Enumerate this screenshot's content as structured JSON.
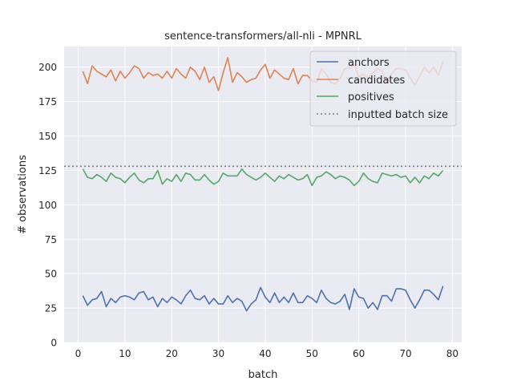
{
  "chart_data": {
    "type": "line",
    "title": "sentence-transformers/all-nli - MPNRL",
    "xlabel": "batch",
    "ylabel": "# observations",
    "xlim": [
      -3,
      82
    ],
    "ylim": [
      0,
      215
    ],
    "xticks": [
      0,
      10,
      20,
      30,
      40,
      50,
      60,
      70,
      80
    ],
    "yticks": [
      0,
      25,
      50,
      75,
      100,
      125,
      150,
      175,
      200
    ],
    "grid": true,
    "legend_position": "top-right",
    "x": [
      1,
      2,
      3,
      4,
      5,
      6,
      7,
      8,
      9,
      10,
      11,
      12,
      13,
      14,
      15,
      16,
      17,
      18,
      19,
      20,
      21,
      22,
      23,
      24,
      25,
      26,
      27,
      28,
      29,
      30,
      31,
      32,
      33,
      34,
      35,
      36,
      37,
      38,
      39,
      40,
      41,
      42,
      43,
      44,
      45,
      46,
      47,
      48,
      49,
      50,
      51,
      52,
      53,
      54,
      55,
      56,
      57,
      58,
      59,
      60,
      61,
      62,
      63,
      64,
      65,
      66,
      67,
      68,
      69,
      70,
      71,
      72,
      73,
      74,
      75,
      76,
      77,
      78
    ],
    "series": [
      {
        "name": "anchors",
        "color": "#4c72b0",
        "values": [
          34,
          27,
          31,
          32,
          37,
          26,
          32,
          29,
          33,
          34,
          33,
          31,
          36,
          37,
          31,
          33,
          26,
          32,
          29,
          33,
          31,
          28,
          34,
          38,
          32,
          31,
          34,
          28,
          32,
          28,
          28,
          34,
          29,
          32,
          30,
          23,
          28,
          31,
          40,
          33,
          29,
          36,
          29,
          33,
          29,
          36,
          29,
          29,
          34,
          32,
          29,
          38,
          32,
          29,
          28,
          30,
          35,
          24,
          39,
          33,
          32,
          25,
          29,
          24,
          34,
          34,
          30,
          39,
          39,
          38,
          31,
          25,
          31,
          38,
          38,
          35,
          31,
          41
        ]
      },
      {
        "name": "candidates",
        "color": "#dd8452",
        "values": [
          197,
          188,
          201,
          197,
          195,
          193,
          198,
          190,
          197,
          192,
          196,
          201,
          199,
          192,
          196,
          194,
          195,
          192,
          197,
          192,
          199,
          195,
          192,
          200,
          197,
          191,
          200,
          189,
          193,
          183,
          196,
          207,
          189,
          196,
          193,
          189,
          191,
          192,
          198,
          202,
          192,
          198,
          195,
          192,
          191,
          199,
          188,
          194,
          194,
          190,
          189,
          199,
          195,
          189,
          188,
          192,
          199,
          199,
          202,
          193,
          195,
          192,
          196,
          199,
          197,
          189,
          195,
          199,
          199,
          198,
          192,
          187,
          193,
          200,
          196,
          200,
          194,
          204
        ]
      },
      {
        "name": "positives",
        "color": "#55a868",
        "values": [
          126,
          120,
          119,
          122,
          120,
          117,
          123,
          120,
          119,
          116,
          120,
          123,
          118,
          116,
          119,
          119,
          125,
          115,
          119,
          117,
          122,
          117,
          123,
          122,
          118,
          118,
          122,
          118,
          115,
          117,
          123,
          121,
          121,
          121,
          126,
          122,
          120,
          118,
          120,
          123,
          120,
          117,
          121,
          119,
          122,
          120,
          118,
          119,
          122,
          114,
          120,
          121,
          124,
          122,
          119,
          121,
          120,
          118,
          114,
          117,
          123,
          119,
          117,
          116,
          123,
          122,
          121,
          122,
          120,
          121,
          116,
          120,
          116,
          121,
          119,
          123,
          121,
          125
        ]
      }
    ],
    "reference_line": {
      "name": "inputted batch size",
      "value": 128,
      "style": "dotted",
      "color": "#808080"
    }
  }
}
